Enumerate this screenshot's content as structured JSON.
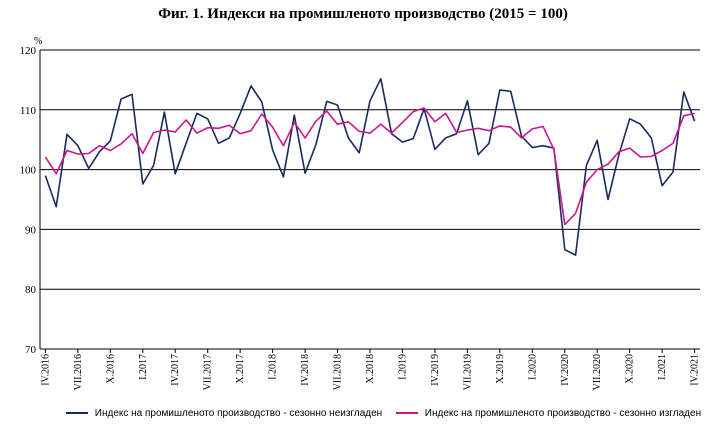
{
  "title": "Фиг. 1. Индекси на промишленото производство (2015 = 100)",
  "chart_data": {
    "type": "line",
    "title": "Фиг. 1. Индекси на промишленото производство (2015 = 100)",
    "ylabel": "%",
    "xlabel": "",
    "ylim": [
      70,
      120
    ],
    "yticks": [
      70,
      80,
      90,
      100,
      110,
      120
    ],
    "grid": "horizontal",
    "legend_position": "bottom",
    "x": [
      "IV.2016",
      "V.2016",
      "VI.2016",
      "VII.2016",
      "VIII.2016",
      "IX.2016",
      "X.2016",
      "XI.2016",
      "XII.2016",
      "I.2017",
      "II.2017",
      "III.2017",
      "IV.2017",
      "V.2017",
      "VI.2017",
      "VII.2017",
      "VIII.2017",
      "IX.2017",
      "X.2017",
      "XI.2017",
      "XII.2017",
      "I.2018",
      "II.2018",
      "III.2018",
      "IV.2018",
      "V.2018",
      "VI.2018",
      "VII.2018",
      "VIII.2018",
      "IX.2018",
      "X.2018",
      "XI.2018",
      "XII.2018",
      "I.2019",
      "II.2019",
      "III.2019",
      "IV.2019",
      "V.2019",
      "VI.2019",
      "VII.2019",
      "VIII.2019",
      "IX.2019",
      "X.2019",
      "XI.2019",
      "XII.2019",
      "I.2020",
      "II.2020",
      "III.2020",
      "IV.2020",
      "V.2020",
      "VI.2020",
      "VII.2020",
      "VIII.2020",
      "IX.2020",
      "X.2020",
      "XI.2020",
      "XII.2020",
      "I.2021",
      "II.2021",
      "III.2021",
      "IV.2021"
    ],
    "tick_labels": [
      "IV.2016",
      "VII.2016",
      "X.2016",
      "I.2017",
      "IV.2017",
      "VII.2017",
      "X.2017",
      "I.2018",
      "IV.2018",
      "VII.2018",
      "X.2018",
      "I.2019",
      "IV.2019",
      "VII.2019",
      "X.2019",
      "I.2020",
      "IV.2020",
      "VII.2020",
      "X.2020",
      "I.2021",
      "IV.2021"
    ],
    "series": [
      {
        "name": "Индекс на промишленото производство - сезонно неизгладен",
        "color": "#1a2a5e",
        "values": [
          99.0,
          93.8,
          105.9,
          104.0,
          100.2,
          103.0,
          104.8,
          111.8,
          112.6,
          97.6,
          100.7,
          109.6,
          99.3,
          104.4,
          109.4,
          108.5,
          104.4,
          105.3,
          109.4,
          114.0,
          111.3,
          103.3,
          98.8,
          109.1,
          99.4,
          104.2,
          111.4,
          110.8,
          105.3,
          102.8,
          111.5,
          115.2,
          106.0,
          104.6,
          105.2,
          110.2,
          103.4,
          105.3,
          106.0,
          111.5,
          102.5,
          104.4,
          113.3,
          113.1,
          105.6,
          103.7,
          104.0,
          103.6,
          86.6,
          85.7,
          100.7,
          104.9,
          95.0,
          102.5,
          108.5,
          107.6,
          105.3,
          97.3,
          99.6,
          113.0,
          108.1
        ]
      },
      {
        "name": "Индекс на промишленото производство - сезонно изгладен",
        "color": "#c8188c",
        "values": [
          102.1,
          99.3,
          103.2,
          102.6,
          102.7,
          104.0,
          103.2,
          104.3,
          106.0,
          102.7,
          106.2,
          106.6,
          106.3,
          108.3,
          106.1,
          107.0,
          106.9,
          107.4,
          106.0,
          106.5,
          109.3,
          107.1,
          104.0,
          107.9,
          105.3,
          108.1,
          109.8,
          107.6,
          108.0,
          106.4,
          106.1,
          107.6,
          106.1,
          107.9,
          109.7,
          110.3,
          108.0,
          109.4,
          106.2,
          106.6,
          106.9,
          106.5,
          107.3,
          107.1,
          105.3,
          106.8,
          107.2,
          103.4,
          90.8,
          92.7,
          97.9,
          100.0,
          100.9,
          103.0,
          103.6,
          102.1,
          102.2,
          103.2,
          104.4,
          109.0,
          109.4
        ]
      }
    ]
  }
}
